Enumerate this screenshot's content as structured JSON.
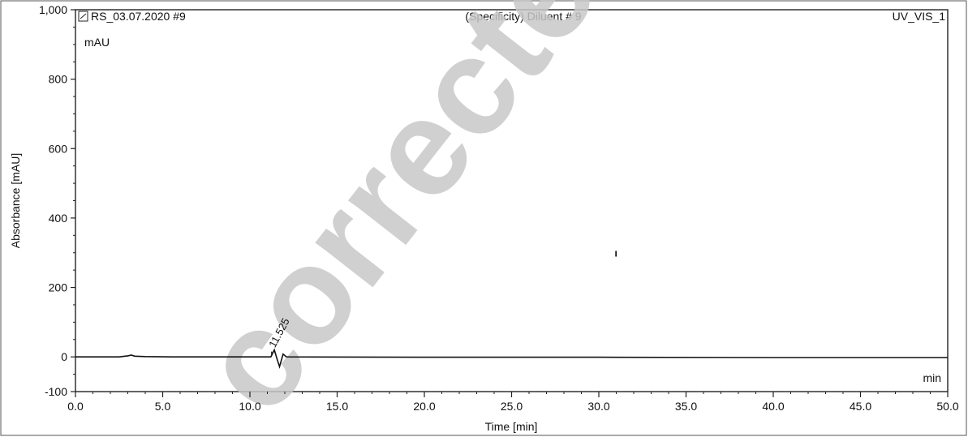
{
  "header": {
    "icon": "chromatogram-icon",
    "sample": "RS_03.07.2020 #9",
    "title": "(Specificity) Diluent # 9",
    "channel": "UV_VIS_1"
  },
  "watermark": {
    "text": "corrected"
  },
  "chart_data": {
    "type": "line",
    "title": "(Specificity) Diluent # 9",
    "xlabel": "Time [min]",
    "ylabel": "Absorbance [mAU]",
    "y_unit_label": "mAU",
    "x_unit_label": "min",
    "xlim": [
      0,
      50
    ],
    "ylim": [
      -100,
      1000
    ],
    "x_ticks": [
      0,
      5,
      10,
      15,
      20,
      25,
      30,
      35,
      40,
      45,
      50
    ],
    "x_tick_labels": [
      "0.0",
      "5.0",
      "10.0",
      "15.0",
      "20.0",
      "25.0",
      "30.0",
      "35.0",
      "40.0",
      "45.0",
      "50.0"
    ],
    "y_ticks": [
      -100,
      0,
      200,
      400,
      600,
      800,
      1000
    ],
    "y_tick_labels": [
      "-100",
      "0",
      "200",
      "400",
      "600",
      "800",
      "1,000"
    ],
    "grid": false,
    "series": [
      {
        "x": [
          0,
          2.5,
          3.0,
          3.2,
          3.4,
          4.0,
          5.5,
          11.2,
          11.4,
          11.55,
          11.7,
          11.9,
          12.1,
          20,
          30,
          40,
          50
        ],
        "y": [
          0,
          0,
          3,
          5,
          2,
          1,
          0,
          0,
          20,
          -5,
          -28,
          8,
          0,
          -1,
          -1,
          -2,
          -2
        ]
      }
    ],
    "peak_labels": [
      {
        "x": 11.525,
        "y": 20,
        "label": "11.525"
      }
    ],
    "annotations": [
      {
        "x": 30.9,
        "y": 300,
        "text": "ı"
      }
    ]
  }
}
